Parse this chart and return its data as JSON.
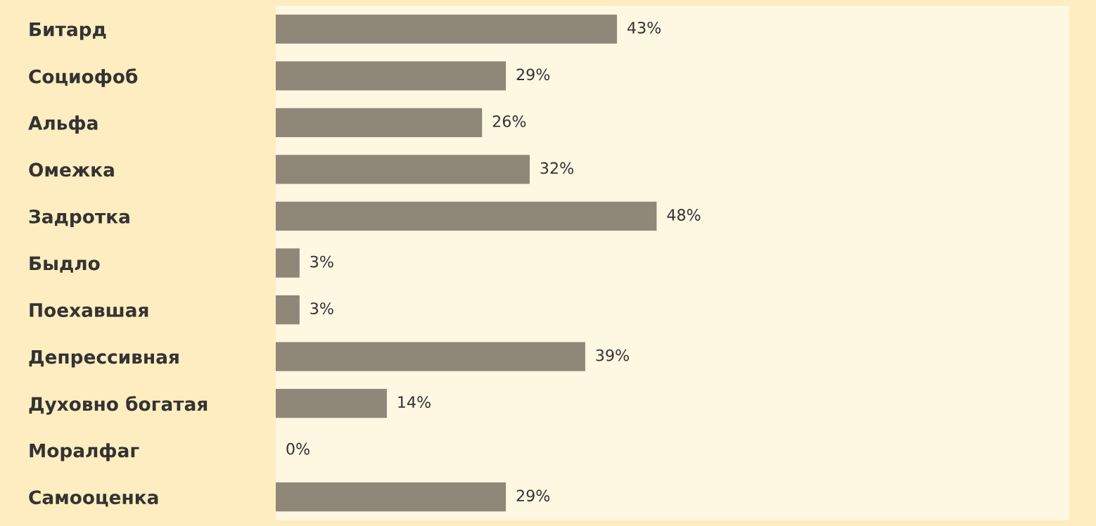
{
  "chart_data": {
    "type": "bar",
    "orientation": "horizontal",
    "categories": [
      "Битард",
      "Социофоб",
      "Альфа",
      "Омежка",
      "Задротка",
      "Быдло",
      "Поехавшая",
      "Депрессивная",
      "Духовно богатая",
      "Моралфаг",
      "Самооценка"
    ],
    "values": [
      43,
      29,
      26,
      32,
      48,
      3,
      3,
      39,
      14,
      0,
      29
    ],
    "value_labels": [
      "43%",
      "29%",
      "26%",
      "32%",
      "48%",
      "3%",
      "3%",
      "39%",
      "14%",
      "0%",
      "29%"
    ],
    "color": "#8f8878",
    "xlim": [
      0,
      100
    ],
    "tick_labels": "y",
    "grid": false,
    "legend": false
  }
}
